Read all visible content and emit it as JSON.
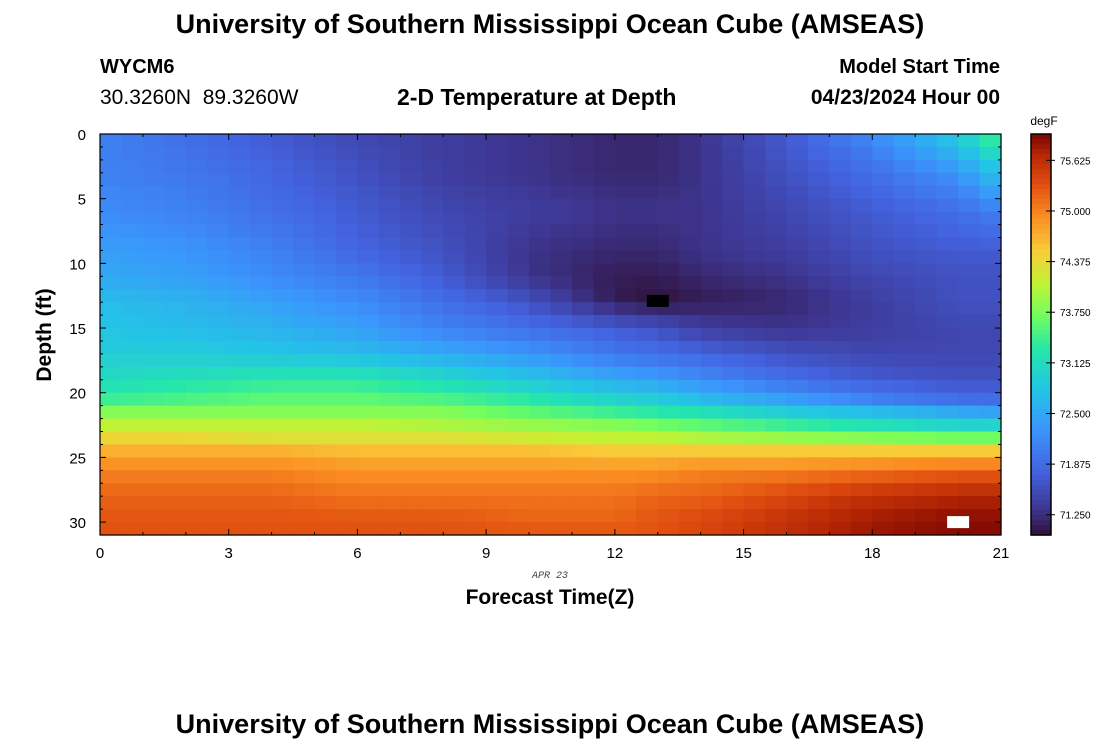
{
  "header": {
    "title": "University of Southern Mississippi Ocean Cube (AMSEAS)",
    "station_id": "WYCM6",
    "coordinates": "30.3260N  89.3260W",
    "chart_title": "2-D Temperature at Depth",
    "model_start_label": "Model Start Time",
    "model_start_value": "04/23/2024 Hour 00"
  },
  "footer": {
    "title": "University of Southern Mississippi Ocean Cube (AMSEAS)"
  },
  "chart_data": {
    "type": "heatmap",
    "title": "2-D Temperature at Depth",
    "xlabel": "Forecast Time(Z)",
    "ylabel": "Depth (ft)",
    "date_label": "APR 23",
    "x_ticks": [
      "0",
      "3",
      "6",
      "9",
      "12",
      "15",
      "18",
      "21"
    ],
    "y_ticks": [
      "0",
      "5",
      "10",
      "15",
      "20",
      "25",
      "30"
    ],
    "xlim": [
      0,
      21
    ],
    "ylim": [
      0,
      31
    ],
    "colorbar": {
      "unit": "degF",
      "ticks": [
        "75.625",
        "75.000",
        "74.375",
        "73.750",
        "73.125",
        "72.500",
        "71.875",
        "71.250"
      ],
      "range": [
        71.0,
        75.95
      ]
    },
    "time_hours": [
      0,
      2,
      4,
      6,
      8,
      10,
      12,
      13,
      14,
      16,
      18,
      20,
      21
    ],
    "depth_ft": [
      0,
      3,
      6,
      9,
      11,
      12.9,
      15,
      17,
      19,
      20.5,
      21.5,
      22.5,
      23.5,
      24.5,
      26,
      28,
      30,
      31
    ],
    "temperature_degF": [
      [
        72.1,
        71.9,
        71.7,
        71.5,
        71.4,
        71.3,
        71.2,
        71.2,
        71.3,
        71.7,
        72.2,
        72.9,
        73.6
      ],
      [
        72.1,
        72.0,
        71.8,
        71.6,
        71.4,
        71.3,
        71.2,
        71.2,
        71.3,
        71.6,
        71.9,
        72.3,
        72.8
      ],
      [
        72.2,
        72.1,
        71.9,
        71.7,
        71.5,
        71.4,
        71.3,
        71.3,
        71.3,
        71.5,
        71.7,
        71.9,
        72.1
      ],
      [
        72.4,
        72.3,
        72.1,
        71.8,
        71.6,
        71.3,
        71.2,
        71.2,
        71.3,
        71.4,
        71.6,
        71.7,
        71.7
      ],
      [
        72.5,
        72.4,
        72.2,
        72.0,
        71.7,
        71.3,
        71.1,
        71.1,
        71.2,
        71.3,
        71.5,
        71.6,
        71.6
      ],
      [
        72.7,
        72.6,
        72.4,
        72.2,
        71.9,
        71.6,
        71.1,
        71.0,
        71.1,
        71.2,
        71.4,
        71.6,
        71.6
      ],
      [
        72.8,
        72.7,
        72.6,
        72.4,
        72.1,
        71.9,
        71.7,
        71.6,
        71.4,
        71.3,
        71.4,
        71.5,
        71.5
      ],
      [
        72.9,
        72.9,
        72.8,
        72.7,
        72.5,
        72.3,
        72.0,
        71.9,
        71.8,
        71.6,
        71.5,
        71.5,
        71.5
      ],
      [
        73.1,
        73.2,
        73.3,
        73.3,
        73.1,
        72.8,
        72.5,
        72.4,
        72.2,
        71.9,
        71.7,
        71.6,
        71.6
      ],
      [
        73.4,
        73.5,
        73.6,
        73.6,
        73.5,
        73.3,
        73.0,
        72.9,
        72.7,
        72.4,
        72.1,
        71.9,
        71.9
      ],
      [
        73.8,
        73.8,
        73.8,
        73.8,
        73.8,
        73.6,
        73.4,
        73.3,
        73.2,
        72.9,
        72.7,
        72.5,
        72.4
      ],
      [
        74.1,
        74.1,
        74.1,
        74.1,
        74.0,
        73.9,
        73.8,
        73.7,
        73.6,
        73.4,
        73.2,
        73.0,
        73.0
      ],
      [
        74.4,
        74.4,
        74.3,
        74.3,
        74.3,
        74.2,
        74.1,
        74.1,
        74.0,
        73.9,
        73.8,
        73.7,
        73.7
      ],
      [
        74.7,
        74.7,
        74.7,
        74.6,
        74.6,
        74.6,
        74.5,
        74.5,
        74.5,
        74.5,
        74.5,
        74.5,
        74.5
      ],
      [
        75.0,
        75.0,
        75.0,
        74.9,
        74.9,
        74.9,
        74.9,
        74.9,
        75.0,
        75.0,
        75.1,
        75.2,
        75.2
      ],
      [
        75.2,
        75.2,
        75.2,
        75.1,
        75.1,
        75.1,
        75.1,
        75.2,
        75.2,
        75.4,
        75.6,
        75.7,
        75.7
      ],
      [
        75.3,
        75.3,
        75.3,
        75.3,
        75.3,
        75.2,
        75.2,
        75.3,
        75.4,
        75.6,
        75.8,
        75.9,
        75.9
      ],
      [
        75.3,
        75.3,
        75.3,
        75.3,
        75.3,
        75.3,
        75.3,
        75.3,
        75.4,
        75.6,
        75.8,
        75.9,
        75.9
      ]
    ],
    "min_marker": {
      "time": 13,
      "depth": 12.9
    },
    "max_marker": {
      "time": 20,
      "depth": 30
    }
  }
}
